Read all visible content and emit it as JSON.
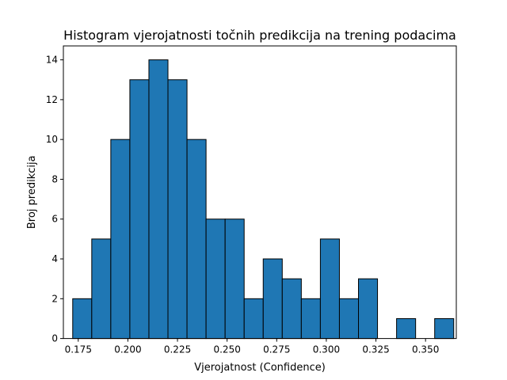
{
  "chart_data": {
    "type": "bar",
    "title": "Histogram vjerojatnosti točnih predikcija na trening podacima",
    "xlabel": "Vjerojatnost (Confidence)",
    "ylabel": "Broj predikcija",
    "xlim": [
      0.1675,
      0.3655
    ],
    "ylim": [
      0,
      14.7
    ],
    "bin_edges": [
      0.1722,
      0.1818,
      0.1914,
      0.201,
      0.2106,
      0.2202,
      0.2298,
      0.2394,
      0.249,
      0.2586,
      0.2682,
      0.2778,
      0.2874,
      0.297,
      0.3066,
      0.3162,
      0.3258,
      0.3354,
      0.345,
      0.3546,
      0.3642
    ],
    "counts": [
      2,
      5,
      10,
      13,
      14,
      13,
      10,
      6,
      6,
      2,
      4,
      3,
      2,
      5,
      2,
      3,
      0,
      1,
      0,
      1
    ],
    "xticks": [
      0.175,
      0.2,
      0.225,
      0.25,
      0.275,
      0.3,
      0.325,
      0.35
    ],
    "xtick_labels": [
      "0.175",
      "0.200",
      "0.225",
      "0.250",
      "0.275",
      "0.300",
      "0.325",
      "0.350"
    ],
    "yticks": [
      0,
      2,
      4,
      6,
      8,
      10,
      12,
      14
    ],
    "ytick_labels": [
      "0",
      "2",
      "4",
      "6",
      "8",
      "10",
      "12",
      "14"
    ],
    "bar_color": "#1f77b4",
    "edge_color": "#000000",
    "grid": false,
    "legend": "none"
  }
}
